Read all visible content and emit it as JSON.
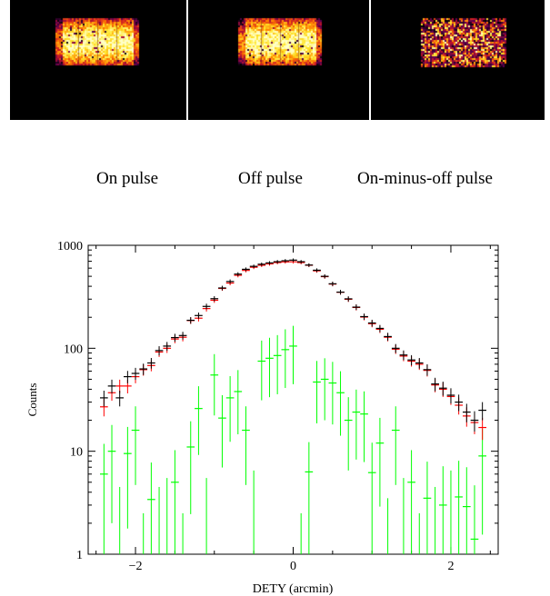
{
  "captions": [
    "On pulse",
    "Off pulse",
    "On-minus-off pulse"
  ],
  "colors": {
    "on_pulse": "#000000",
    "off_pulse": "#ff0000",
    "difference": "#00ff00",
    "image_background": "#000000",
    "panel_divider": "#ffffff"
  },
  "chart_data": {
    "type": "scatter",
    "xlabel": "DETY (arcmin)",
    "ylabel": "Counts",
    "xlim": [
      -2.6,
      2.6
    ],
    "ylim": [
      1,
      1000
    ],
    "yscale": "log",
    "xticks": [
      {
        "value": -2,
        "label": "−2"
      },
      {
        "value": 0,
        "label": "0"
      },
      {
        "value": 2,
        "label": "2"
      }
    ],
    "yticks": [
      {
        "value": 1,
        "label": "1"
      },
      {
        "value": 10,
        "label": "10"
      },
      {
        "value": 100,
        "label": "100"
      },
      {
        "value": 1000,
        "label": "1000"
      }
    ],
    "bin_halfwidth": 0.05,
    "x": [
      -2.4,
      -2.3,
      -2.2,
      -2.1,
      -2.0,
      -1.9,
      -1.8,
      -1.7,
      -1.6,
      -1.5,
      -1.4,
      -1.3,
      -1.2,
      -1.1,
      -1.0,
      -0.9,
      -0.8,
      -0.7,
      -0.6,
      -0.5,
      -0.4,
      -0.3,
      -0.2,
      -0.1,
      0.0,
      0.1,
      0.2,
      0.3,
      0.4,
      0.5,
      0.6,
      0.7,
      0.8,
      0.9,
      1.0,
      1.1,
      1.2,
      1.3,
      1.4,
      1.5,
      1.6,
      1.7,
      1.8,
      1.9,
      2.0,
      2.1,
      2.2,
      2.3,
      2.4
    ],
    "series": [
      {
        "id": "on",
        "values": [
          33,
          43,
          33,
          53,
          57,
          63,
          72,
          95,
          105,
          127,
          133,
          187,
          208,
          255,
          303,
          385,
          445,
          525,
          585,
          625,
          655,
          675,
          693,
          708,
          718,
          693,
          643,
          573,
          500,
          423,
          351,
          302,
          251,
          203,
          176,
          156,
          130,
          100,
          86,
          77,
          72,
          62,
          45,
          41,
          35,
          30,
          24,
          20,
          25
        ]
      },
      {
        "id": "off",
        "values": [
          27,
          37,
          43,
          43,
          53,
          62,
          68,
          92,
          100,
          123,
          128,
          186,
          196,
          243,
          293,
          381,
          430,
          511,
          570,
          612,
          640,
          660,
          680,
          690,
          692,
          680,
          640,
          565,
          496,
          420,
          350,
          299,
          249,
          201,
          173,
          153,
          128,
          98,
          84,
          75,
          70,
          61,
          44,
          40,
          34,
          28,
          22,
          19,
          17
        ]
      },
      {
        "id": "diff",
        "values": [
          6,
          10,
          null,
          9.5,
          16,
          null,
          3.4,
          null,
          null,
          5,
          null,
          11,
          26,
          null,
          55,
          21,
          33,
          38,
          16,
          null,
          75,
          80,
          85,
          97,
          105,
          null,
          6.3,
          47,
          50,
          46,
          37,
          20,
          24,
          23,
          6.2,
          12,
          null,
          16,
          null,
          5,
          null,
          3.5,
          null,
          3,
          null,
          3.6,
          2.9,
          1.4,
          9
        ]
      }
    ]
  }
}
